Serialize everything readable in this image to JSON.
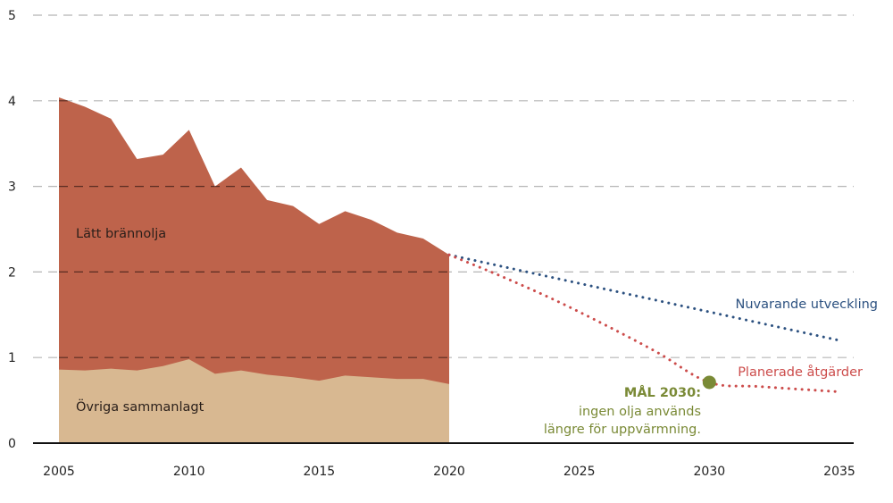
{
  "chart_data": {
    "type": "area",
    "title": "",
    "xlabel": "",
    "ylabel": "",
    "xlim": [
      2005,
      2035
    ],
    "ylim": [
      0,
      5
    ],
    "grid": true,
    "x_ticks": [
      "2005",
      "2010",
      "2015",
      "2020",
      "2025",
      "2030",
      "2035"
    ],
    "y_ticks": [
      "0",
      "1",
      "2",
      "3",
      "4",
      "5"
    ],
    "x": [
      2005,
      2006,
      2007,
      2008,
      2009,
      2010,
      2011,
      2012,
      2013,
      2014,
      2015,
      2016,
      2017,
      2018,
      2019,
      2020
    ],
    "series": [
      {
        "name": "Övriga sammanlagt",
        "stack": "bottom",
        "color": "#d8b891",
        "values": [
          0.86,
          0.85,
          0.87,
          0.85,
          0.9,
          0.98,
          0.81,
          0.85,
          0.8,
          0.77,
          0.73,
          0.79,
          0.77,
          0.75,
          0.75,
          0.69
        ]
      },
      {
        "name": "Lätt brännolja",
        "stack": "top",
        "color": "#be634b",
        "values_total": [
          4.04,
          3.93,
          3.79,
          3.32,
          3.37,
          3.66,
          3.0,
          3.22,
          2.84,
          2.77,
          2.56,
          2.71,
          2.61,
          2.46,
          2.39,
          2.2
        ]
      }
    ],
    "projections": [
      {
        "name": "Nuvarande utveckling",
        "color": "#2c5180",
        "style": "dotted",
        "points": [
          [
            2020,
            2.2
          ],
          [
            2035,
            1.2
          ]
        ]
      },
      {
        "name": "Planerade åtgärder",
        "color": "#cc4c4b",
        "style": "dotted",
        "points": [
          [
            2020,
            2.2
          ],
          [
            2022,
            1.95
          ],
          [
            2024,
            1.68
          ],
          [
            2026,
            1.38
          ],
          [
            2028,
            1.06
          ],
          [
            2030,
            0.71
          ],
          [
            2032,
            0.66
          ],
          [
            2035,
            0.6
          ]
        ]
      }
    ],
    "target": {
      "x": 2030,
      "y": 0.71,
      "color": "#7a8a36",
      "title": "MÅL 2030:",
      "lines": [
        "ingen olja används",
        "längre för uppvärmning."
      ]
    },
    "labels": {
      "top_area": "Lätt brännolja",
      "bottom_area": "Övriga sammanlagt",
      "blue_line": "Nuvarande utveckling",
      "red_line": "Planerade åtgärder"
    }
  }
}
